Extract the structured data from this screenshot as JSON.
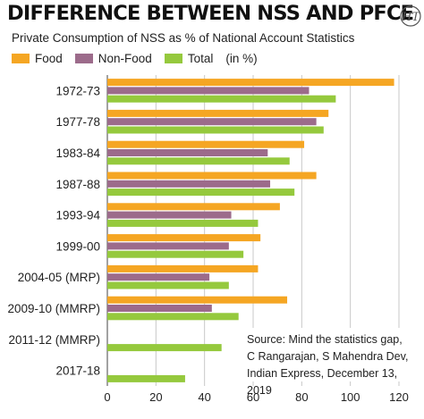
{
  "title": "DIFFERENCE BETWEEN NSS AND PFCE",
  "subtitle": "Private Consumption of NSS as % of National Account Statistics",
  "legend": {
    "food": "Food",
    "nonfood": "Non-Food",
    "total": "Total",
    "unit": "(in %)"
  },
  "source": {
    "line1": "Source: Mind the statistics gap,",
    "line2": "C Rangarajan, S Mahendra Dev,",
    "line3": "Indian Express, December 13, 2019"
  },
  "logo": "HT",
  "colors": {
    "food": "#F5A623",
    "nonfood": "#9C6B8B",
    "total": "#95C93D",
    "grid": "#c8c8c8"
  },
  "chart_data": {
    "type": "bar",
    "orientation": "horizontal",
    "categories": [
      "1972-73",
      "1977-78",
      "1983-84",
      "1987-88",
      "1993-94",
      "1999-00",
      "2004-05 (MRP)",
      "2009-10 (MMRP)",
      "2011-12 (MMRP)",
      "2017-18"
    ],
    "series": [
      {
        "name": "Food",
        "values": [
          118,
          91,
          81,
          86,
          71,
          63,
          62,
          74,
          null,
          null
        ]
      },
      {
        "name": "Non-Food",
        "values": [
          83,
          86,
          66,
          67,
          51,
          50,
          42,
          43,
          null,
          null
        ]
      },
      {
        "name": "Total",
        "values": [
          94,
          89,
          75,
          77,
          62,
          56,
          50,
          54,
          47,
          32
        ]
      }
    ],
    "xlim": [
      0,
      120
    ],
    "xticks": [
      0,
      20,
      40,
      60,
      80,
      100,
      120
    ],
    "grid": true,
    "legend_position": "top-left"
  }
}
